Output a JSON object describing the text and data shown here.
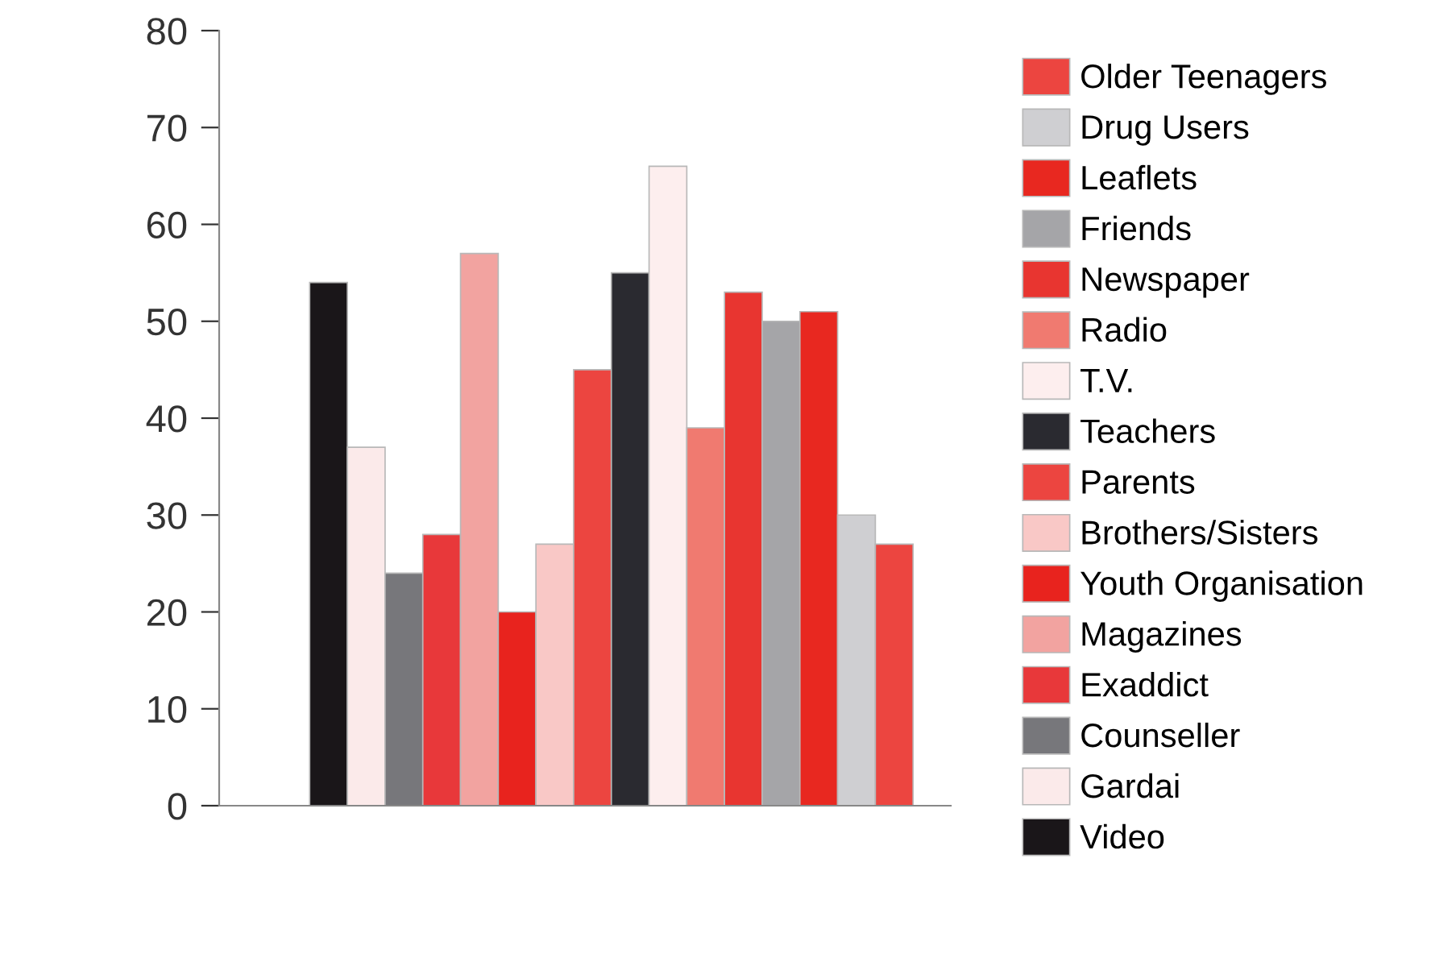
{
  "chart_data": {
    "type": "bar",
    "categories": [
      null
    ],
    "ylim": [
      0,
      80
    ],
    "yticks": [
      0,
      10,
      20,
      30,
      40,
      50,
      60,
      70,
      80
    ],
    "grid": false,
    "legend": "right",
    "series": [
      {
        "name": "Video",
        "color": "#1a1619",
        "values": [
          54
        ]
      },
      {
        "name": "Gardai",
        "color": "#fbeaea",
        "values": [
          37
        ]
      },
      {
        "name": "Counseller",
        "color": "#77777b",
        "values": [
          24
        ]
      },
      {
        "name": "Exaddict",
        "color": "#e8383a",
        "values": [
          28
        ]
      },
      {
        "name": "Magazines",
        "color": "#f2a3a0",
        "values": [
          57
        ]
      },
      {
        "name": "Youth Organisation",
        "color": "#e8231e",
        "values": [
          20
        ]
      },
      {
        "name": "Brothers/Sisters",
        "color": "#f9c8c6",
        "values": [
          27
        ]
      },
      {
        "name": "Parents",
        "color": "#ec4540",
        "values": [
          45
        ]
      },
      {
        "name": "Teachers",
        "color": "#2a2a30",
        "values": [
          55
        ]
      },
      {
        "name": "T.V.",
        "color": "#fdeeee",
        "values": [
          66
        ]
      },
      {
        "name": "Radio",
        "color": "#f07a70",
        "values": [
          39
        ]
      },
      {
        "name": "Newspaper",
        "color": "#e83530",
        "values": [
          53
        ]
      },
      {
        "name": "Friends",
        "color": "#a5a5a8",
        "values": [
          50
        ]
      },
      {
        "name": "Leaflets",
        "color": "#e82820",
        "values": [
          51
        ]
      },
      {
        "name": "Drug Users",
        "color": "#cfcfd2",
        "values": [
          30
        ]
      },
      {
        "name": "Older Teenagers",
        "color": "#ec4540",
        "values": [
          27
        ]
      }
    ]
  }
}
